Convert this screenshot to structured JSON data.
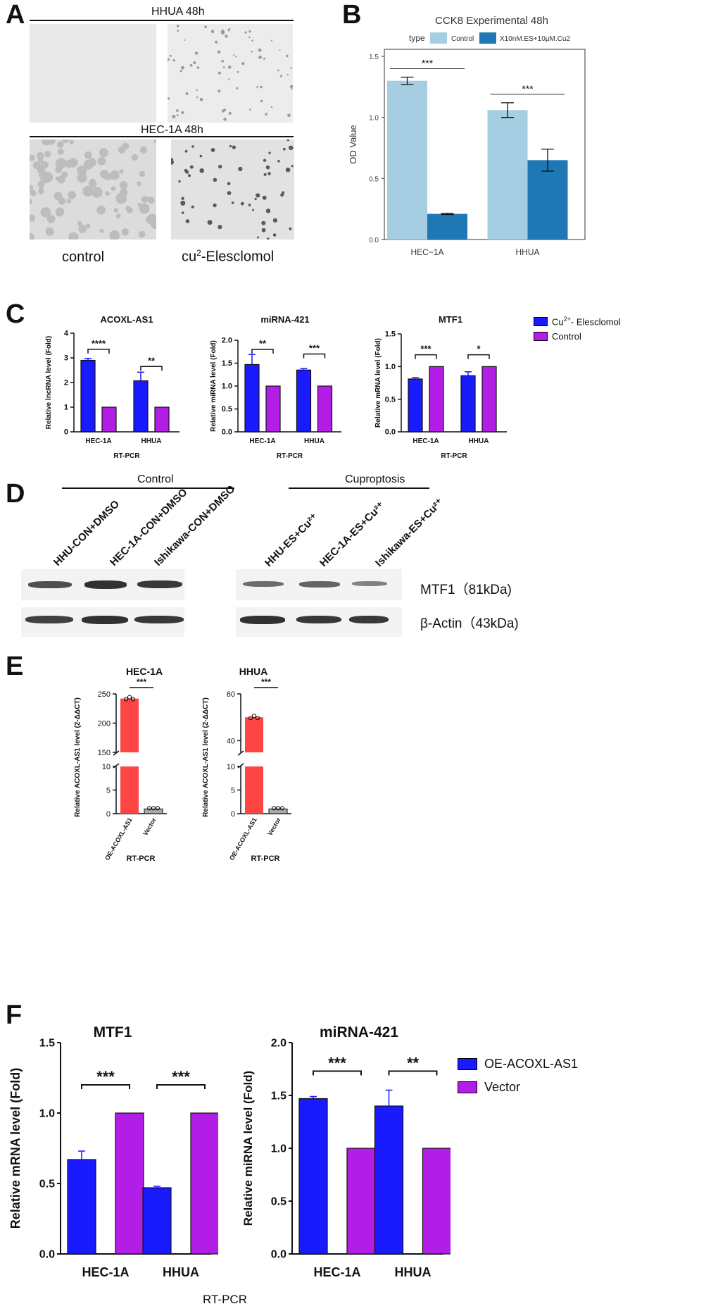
{
  "figure_letters": [
    "A",
    "B",
    "C",
    "D",
    "E",
    "F"
  ],
  "panelA": {
    "row1_title": "HHUA 48h",
    "row2_title": "HEC-1A  48h",
    "col1_caption": "control",
    "col2_caption_base": "cu",
    "col2_caption_sup": "2",
    "col2_caption_rest": "-Elesclomol"
  },
  "chart_data": [
    {
      "id": "B",
      "type": "bar",
      "title": "CCK8 Experimental 48h",
      "legend_title": "type",
      "categories": [
        "HEC−1A",
        "HHUA"
      ],
      "series": [
        {
          "name": "Control",
          "color": "#a6cee3",
          "values": [
            1.3,
            1.06
          ],
          "errors": [
            0.03,
            0.06
          ]
        },
        {
          "name": "X10nM.ES+10μM.Cu2",
          "color": "#1f78b4",
          "values": [
            0.21,
            0.65
          ],
          "errors": [
            0.005,
            0.09
          ]
        }
      ],
      "ylabel": "OD Value",
      "ylim": [
        0,
        1.5
      ],
      "yticks": [
        "0.0",
        "0.5",
        "1.0",
        "1.5"
      ],
      "significance": [
        "***",
        "***"
      ]
    },
    {
      "id": "C1",
      "type": "bar",
      "title": "ACOXL-AS1",
      "categories": [
        "HEC-1A",
        "HHUA"
      ],
      "series": [
        {
          "name": "Cu2+- Elesclomol",
          "color": "#1a1aff",
          "values": [
            2.9,
            2.07
          ],
          "errors": [
            0.08,
            0.35
          ]
        },
        {
          "name": "Control",
          "color": "#b31ee6",
          "values": [
            1.0,
            1.0
          ],
          "errors": [
            0,
            0
          ]
        }
      ],
      "ylabel": "Relative lncRNA level (Fold)",
      "xlabel": "RT-PCR",
      "ylim": [
        0,
        4
      ],
      "yticks": [
        "0",
        "1",
        "2",
        "3",
        "4"
      ],
      "significance": [
        "****",
        "**"
      ]
    },
    {
      "id": "C2",
      "type": "bar",
      "title": "miRNA-421",
      "categories": [
        "HEC-1A",
        "HHUA"
      ],
      "series": [
        {
          "name": "Cu2+- Elesclomol",
          "color": "#1a1aff",
          "values": [
            1.47,
            1.35
          ],
          "errors": [
            0.22,
            0.03
          ]
        },
        {
          "name": "Control",
          "color": "#b31ee6",
          "values": [
            1.0,
            1.0
          ],
          "errors": [
            0,
            0
          ]
        }
      ],
      "ylabel": "Relative miRNA level (Fold)",
      "xlabel": "RT-PCR",
      "ylim": [
        0,
        2.0
      ],
      "yticks": [
        "0.0",
        "0.5",
        "1.0",
        "1.5",
        "2.0"
      ],
      "significance": [
        "**",
        "***"
      ]
    },
    {
      "id": "C3",
      "type": "bar",
      "title": "MTF1",
      "categories": [
        "HEC-1A",
        "HHUA"
      ],
      "series": [
        {
          "name": "Cu2+- Elesclomol",
          "color": "#1a1aff",
          "values": [
            0.81,
            0.86
          ],
          "errors": [
            0.02,
            0.06
          ]
        },
        {
          "name": "Control",
          "color": "#b31ee6",
          "values": [
            1.0,
            1.0
          ],
          "errors": [
            0,
            0
          ]
        }
      ],
      "ylabel": "Relative mRNA level (Fold)",
      "xlabel": "RT-PCR",
      "ylim": [
        0,
        1.5
      ],
      "yticks": [
        "0.0",
        "0.5",
        "1.0",
        "1.5"
      ],
      "significance": [
        "***",
        "*"
      ]
    },
    {
      "id": "E1",
      "type": "bar",
      "title": "HEC-1A",
      "categories": [
        "OE-ACOXL-AS1",
        "Vector"
      ],
      "values": [
        242,
        1.0
      ],
      "colors": [
        "#ff4444",
        "#aaaaaa"
      ],
      "ylabel": "Relative ACOXL-AS1 level (2-ΔΔCT)",
      "xlabel": "RT-PCR",
      "yticks_lower": [
        "0",
        "5",
        "10"
      ],
      "yticks_upper": [
        "150",
        "200",
        "250"
      ],
      "significance": [
        "***"
      ]
    },
    {
      "id": "E2",
      "type": "bar",
      "title": "HHUA",
      "categories": [
        "OE-ACOXL-AS1",
        "Vector"
      ],
      "values": [
        50,
        1.0
      ],
      "colors": [
        "#ff4444",
        "#aaaaaa"
      ],
      "ylabel": "Relative ACOXL-AS1 level (2-ΔΔCT)",
      "xlabel": "RT-PCR",
      "yticks_lower": [
        "0",
        "5",
        "10"
      ],
      "yticks_upper": [
        "40",
        "60"
      ],
      "significance": [
        "***"
      ]
    },
    {
      "id": "F1",
      "type": "bar",
      "title": "MTF1",
      "categories": [
        "HEC-1A",
        "HHUA"
      ],
      "series": [
        {
          "name": "OE-ACOXL-AS1",
          "color": "#1a1aff",
          "values": [
            0.67,
            0.47
          ],
          "errors": [
            0.06,
            0.01
          ]
        },
        {
          "name": "Vector",
          "color": "#b31ee6",
          "values": [
            1.0,
            1.0
          ],
          "errors": [
            0,
            0
          ]
        }
      ],
      "ylabel": "Relative mRNA level (Fold)",
      "ylim": [
        0,
        1.5
      ],
      "yticks": [
        "0.0",
        "0.5",
        "1.0",
        "1.5"
      ],
      "significance": [
        "***",
        "***"
      ]
    },
    {
      "id": "F2",
      "type": "bar",
      "title": "miRNA-421",
      "categories": [
        "HEC-1A",
        "HHUA"
      ],
      "series": [
        {
          "name": "OE-ACOXL-AS1",
          "color": "#1a1aff",
          "values": [
            1.47,
            1.4
          ],
          "errors": [
            0.02,
            0.15
          ]
        },
        {
          "name": "Vector",
          "color": "#b31ee6",
          "values": [
            1.0,
            1.0
          ],
          "errors": [
            0,
            0
          ]
        }
      ],
      "ylabel": "Relative miRNA level (Fold)",
      "ylim": [
        0,
        2.0
      ],
      "yticks": [
        "0.0",
        "0.5",
        "1.0",
        "1.5",
        "2.0"
      ],
      "significance": [
        "***",
        "**"
      ]
    }
  ],
  "legendC": {
    "item1_base": "Cu",
    "item1_sup": "2+",
    "item1_rest": "- Elesclomol",
    "item2": "Control"
  },
  "legendF": {
    "item1": "OE-ACOXL-AS1",
    "item2": "Vector"
  },
  "xlabelF": "RT-PCR",
  "panelD": {
    "group1": "Control",
    "group2": "Cuproptosis",
    "lanes": [
      "HHU-CON+DMSO",
      "HEC-1A-CON+DMSO",
      "Ishikawa-CON+DMSO",
      "HHU-ES+Cu²⁺",
      "HEC-1A-ES+Cu²⁺",
      "Ishikawa-ES+Cu²⁺"
    ],
    "mtf1_intensity": [
      0.75,
      0.95,
      0.9,
      0.55,
      0.6,
      0.4
    ],
    "actin_intensity": [
      0.85,
      0.95,
      0.9,
      0.95,
      0.9,
      0.9
    ],
    "label1": "MTF1（81kDa)",
    "label2": "β-Actin（43kDa)"
  }
}
